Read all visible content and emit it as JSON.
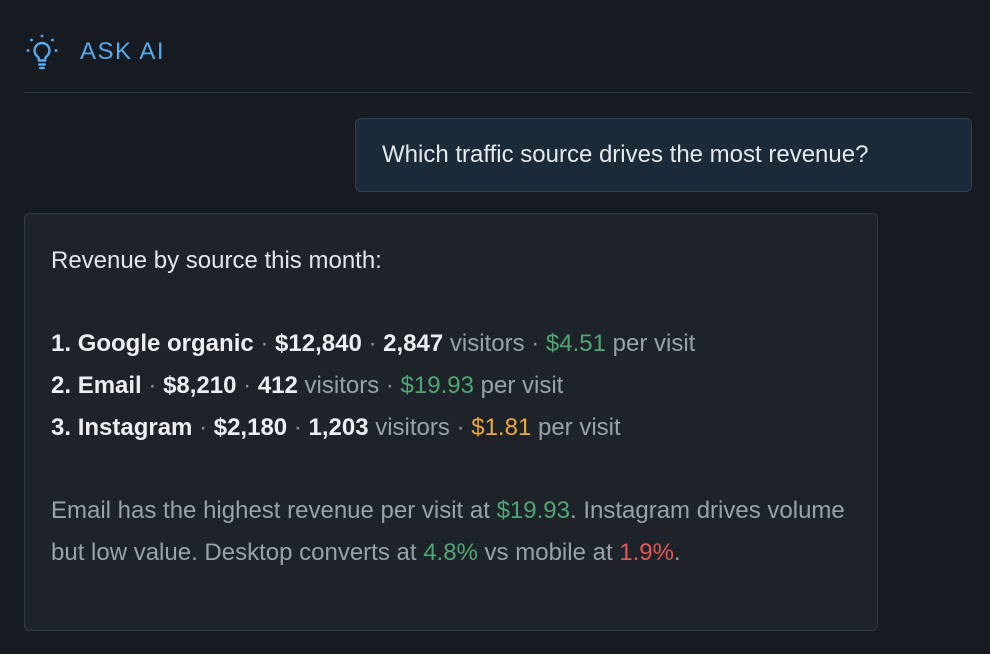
{
  "header": {
    "title": "ASK AI",
    "icon": "lightbulb-icon",
    "accent": "#5aa9ea"
  },
  "user_message": {
    "text": "Which traffic source drives the most revenue?"
  },
  "ai_response": {
    "intro": "Revenue by source this month:",
    "separator": "·",
    "visitors_word": "visitors",
    "per_visit_word": "per visit",
    "sources": [
      {
        "rank": "1.",
        "name": "Google organic",
        "revenue": "$12,840",
        "visitors": "2,847",
        "rpv": "$4.51",
        "rpv_color": "green"
      },
      {
        "rank": "2.",
        "name": "Email",
        "revenue": "$8,210",
        "visitors": "412",
        "rpv": "$19.93",
        "rpv_color": "green"
      },
      {
        "rank": "3.",
        "name": "Instagram",
        "revenue": "$2,180",
        "visitors": "1,203",
        "rpv": "$1.81",
        "rpv_color": "amber"
      }
    ],
    "summary": {
      "part1": "Email has the highest revenue per visit at ",
      "value1": "$19.93",
      "part2": ". Instagram drives volume but low value. Desktop converts at ",
      "value2": "4.8%",
      "part3": " vs mobile at ",
      "value3": "1.9%",
      "part4": "."
    }
  },
  "colors": {
    "background": "#161a21",
    "green": "#4fa775",
    "amber": "#e8a93b",
    "red": "#e05757"
  }
}
